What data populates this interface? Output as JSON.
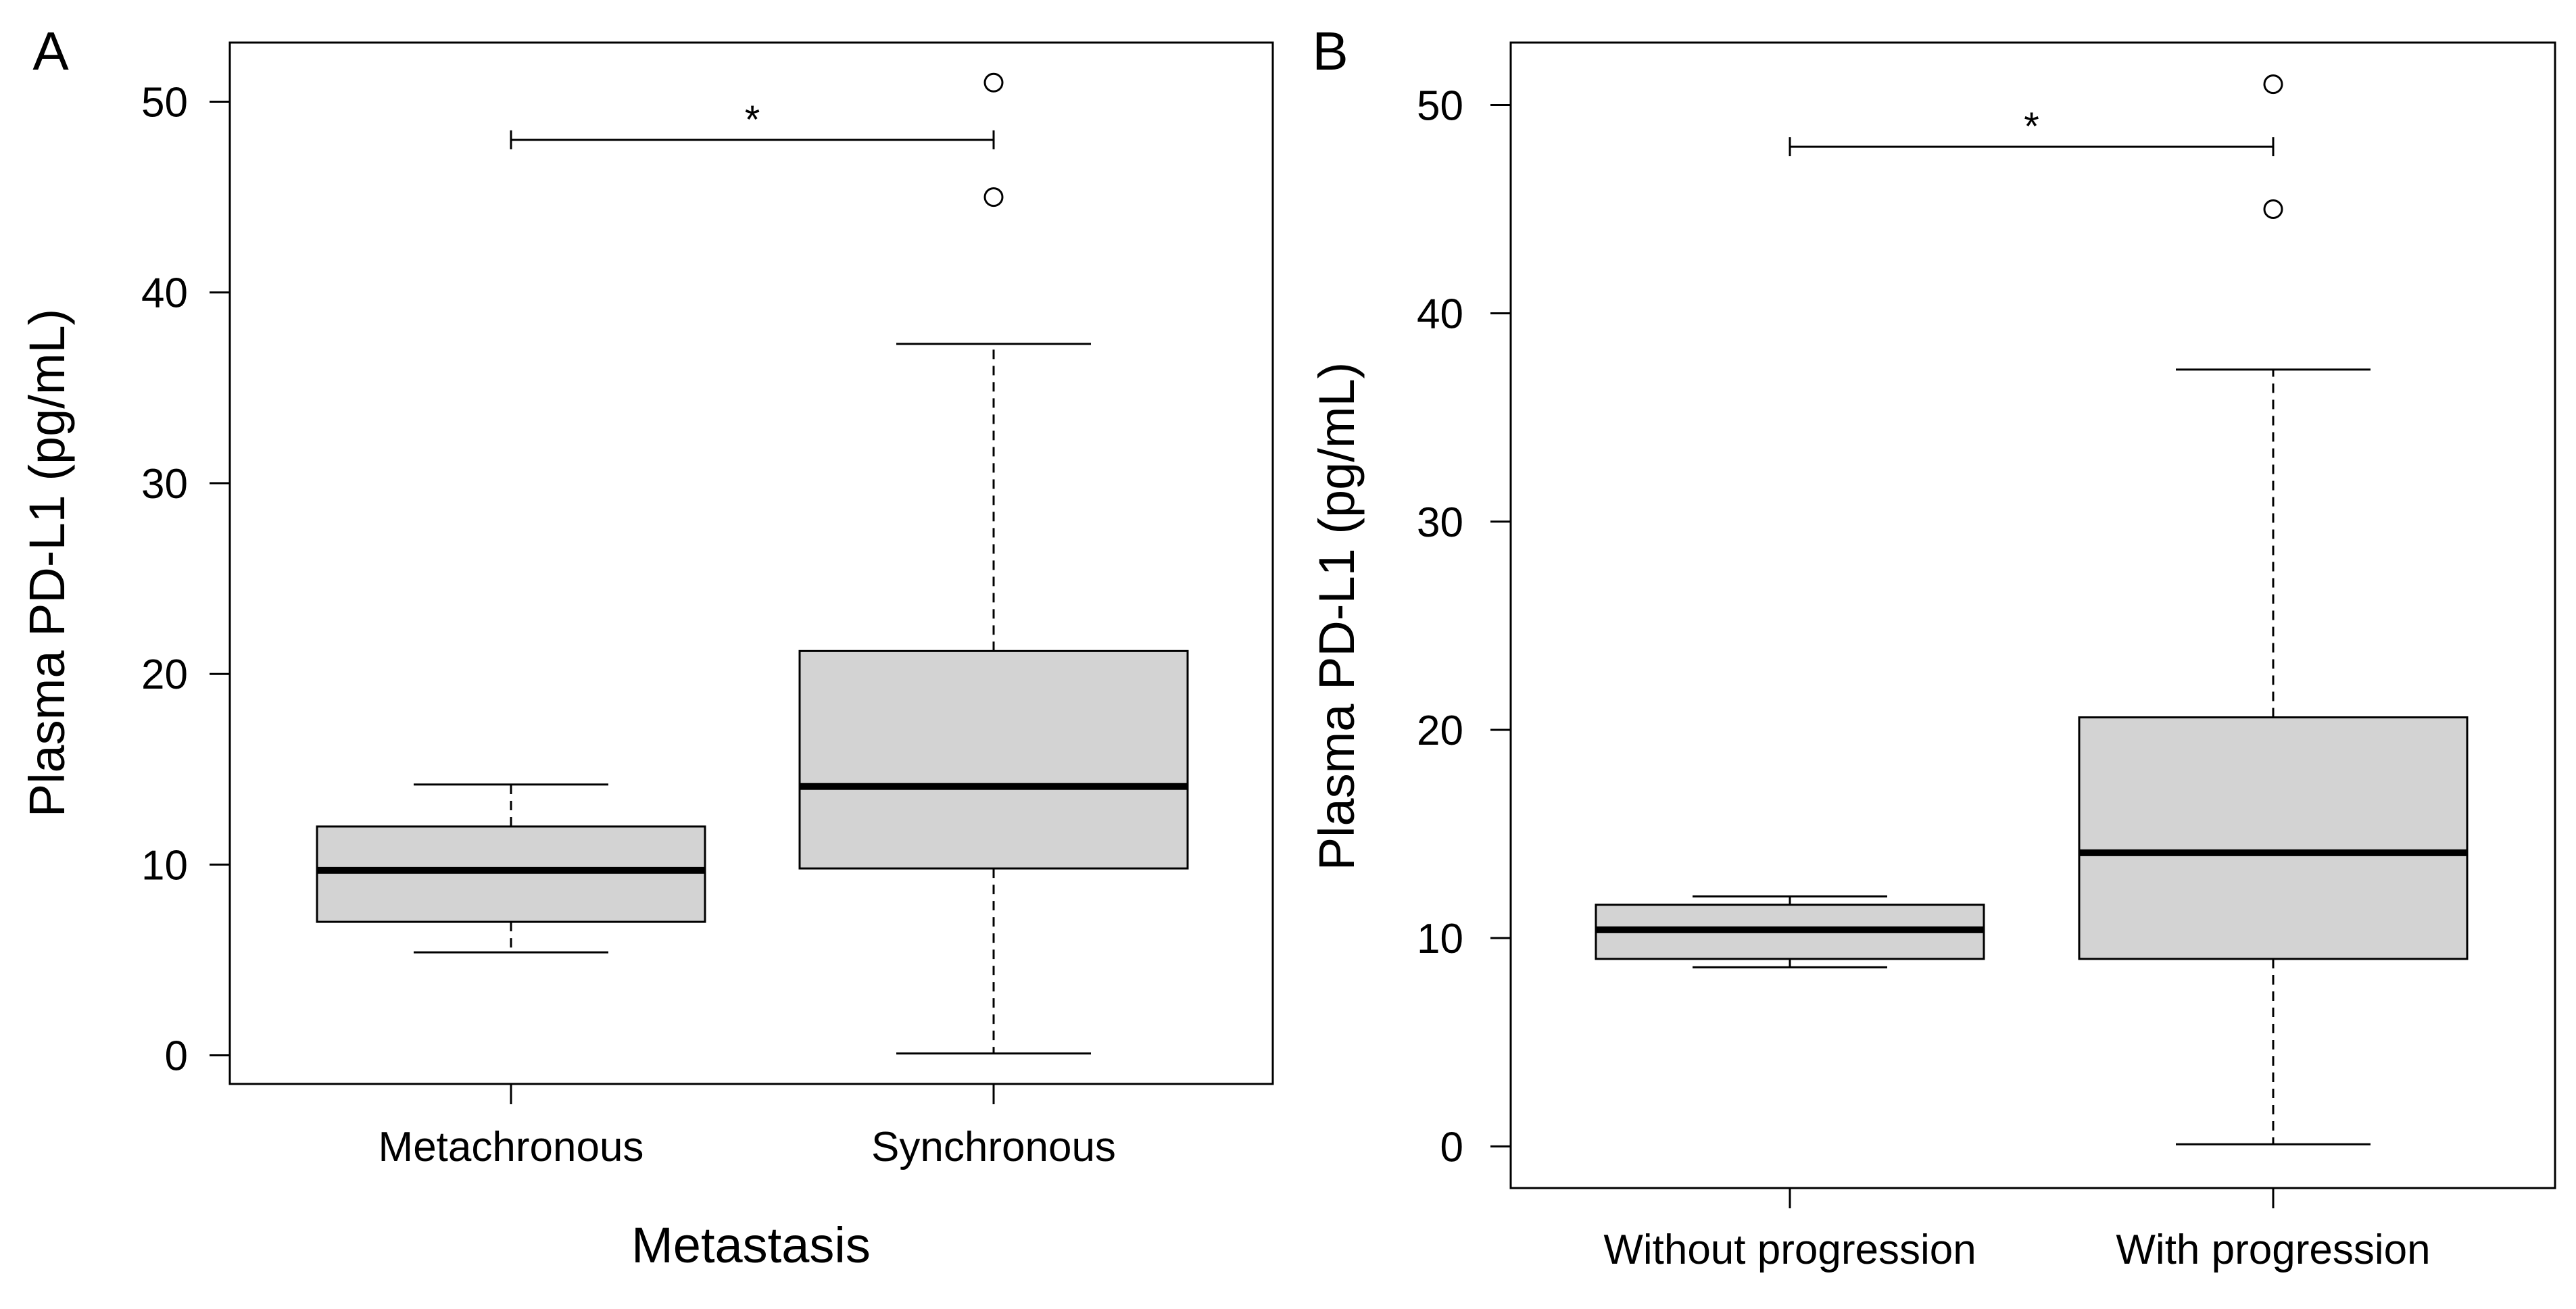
{
  "chart_data": [
    {
      "type": "boxplot",
      "panel_label": "A",
      "ylabel": "Plasma PD-L1 (pg/mL)",
      "xlabel": "Metastasis",
      "ylim": [
        -1.5,
        53.1
      ],
      "yticks": [
        "0",
        "10",
        "20",
        "30",
        "40",
        "50"
      ],
      "ytick_values": [
        0,
        10,
        20,
        30,
        40,
        50
      ],
      "categories": [
        "Metachronous",
        "Synchronous"
      ],
      "boxes": [
        {
          "name": "Metachronous",
          "whisker_low": 5.4,
          "q1": 7.0,
          "median": 9.7,
          "q3": 12.0,
          "whisker_high": 14.2,
          "outliers": []
        },
        {
          "name": "Synchronous",
          "whisker_low": 0.1,
          "q1": 9.8,
          "median": 14.1,
          "q3": 21.2,
          "whisker_high": 37.3,
          "outliers": [
            45.0,
            51.0
          ]
        }
      ],
      "significance": {
        "label": "*",
        "y": 48.0,
        "from": "Metachronous",
        "to": "Synchronous"
      },
      "box_color": "#d3d3d3"
    },
    {
      "type": "boxplot",
      "panel_label": "B",
      "ylabel": "Plasma PD-L1 (pg/mL)",
      "xlabel": "",
      "ylim": [
        -2.0,
        53.0
      ],
      "yticks": [
        "0",
        "10",
        "20",
        "30",
        "40",
        "50"
      ],
      "ytick_values": [
        0,
        10,
        20,
        30,
        40,
        50
      ],
      "categories": [
        "Without progression",
        "With progression"
      ],
      "boxes": [
        {
          "name": "Without progression",
          "whisker_low": 8.6,
          "q1": 9.0,
          "median": 10.4,
          "q3": 11.6,
          "whisker_high": 12.0,
          "outliers": []
        },
        {
          "name": "With progression",
          "whisker_low": 0.1,
          "q1": 9.0,
          "median": 14.1,
          "q3": 20.6,
          "whisker_high": 37.3,
          "outliers": [
            45.0,
            51.0
          ]
        }
      ],
      "significance": {
        "label": "*",
        "y": 48.0,
        "from": "Without progression",
        "to": "With progression"
      },
      "box_color": "#d3d3d3"
    }
  ]
}
